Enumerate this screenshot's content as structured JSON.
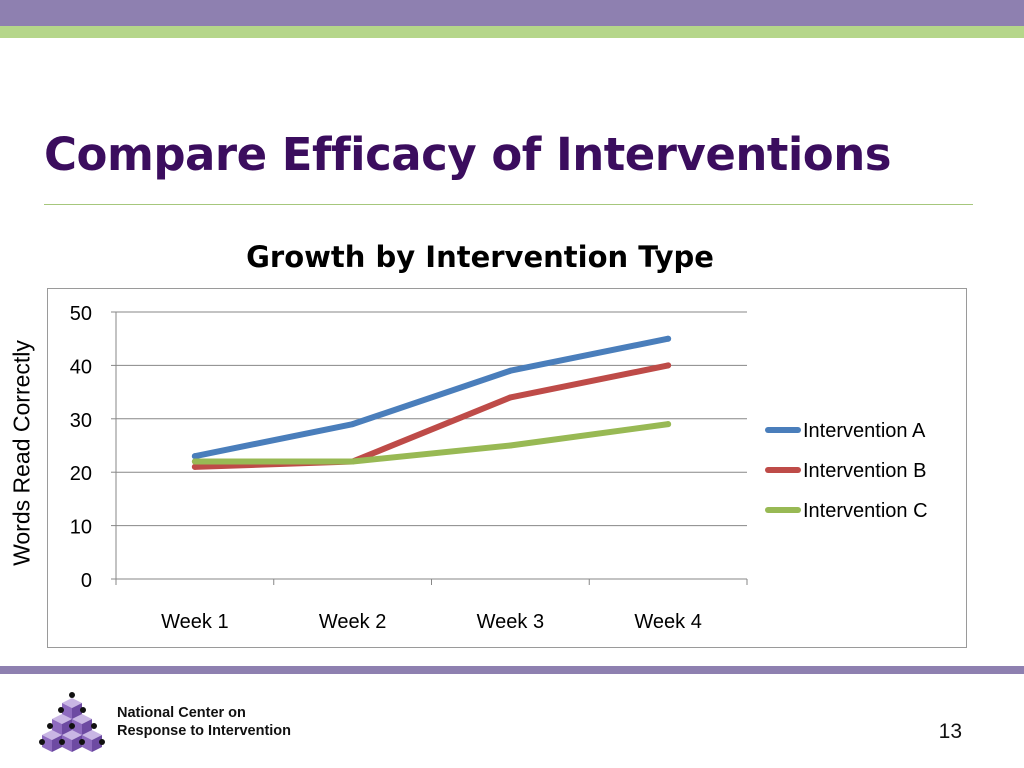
{
  "slide": {
    "title": "Compare Efficacy of Interventions",
    "org_line1": "National Center on",
    "org_line2": "Response to Intervention",
    "page_number": "13",
    "logo_icon": "stacked-cubes-logo-icon"
  },
  "colors": {
    "top_band": "#8e80b0",
    "green_band": "#b5d68a",
    "title": "#3b0d5e",
    "rule": "#a6c77c",
    "bottom_band": "#8e80b0",
    "gridline": "#878787",
    "series_a": "#4a7ebb",
    "series_b": "#be4b48",
    "series_c": "#98b954"
  },
  "chart_data": {
    "type": "line",
    "title": "Growth by Intervention Type",
    "xlabel": "",
    "ylabel": "Words Read Correctly",
    "categories": [
      "Week 1",
      "Week 2",
      "Week 3",
      "Week 4"
    ],
    "ylim": [
      0,
      50
    ],
    "yticks": [
      0,
      10,
      20,
      30,
      40,
      50
    ],
    "grid": true,
    "legend_position": "right",
    "series": [
      {
        "name": "Intervention A",
        "values": [
          23,
          29,
          39,
          45
        ],
        "color": "#4a7ebb"
      },
      {
        "name": "Intervention B",
        "values": [
          21,
          22,
          34,
          40
        ],
        "color": "#be4b48"
      },
      {
        "name": "Intervention C",
        "values": [
          22,
          22,
          25,
          29
        ],
        "color": "#98b954"
      }
    ]
  }
}
